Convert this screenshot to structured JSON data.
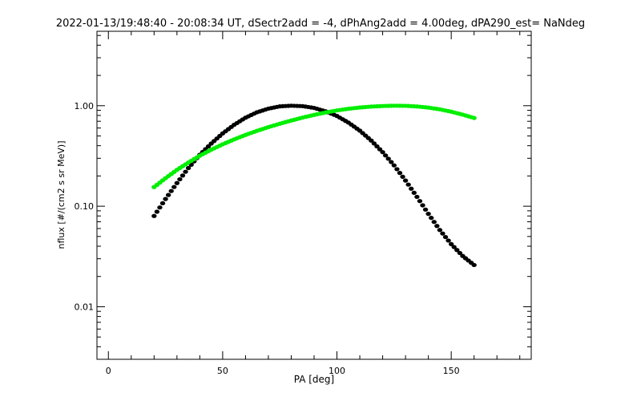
{
  "chart_data": {
    "type": "scatter",
    "title": "2022-01-13/19:48:40 - 20:08:34 UT, dSectr2add = -4, dPhAng2add = 4.00deg, dPA290_est=   NaNdeg",
    "xlabel": "PA [deg]",
    "ylabel": "nflux [#/(cm2 s sr MeV)]",
    "xlim": [
      -5,
      185
    ],
    "ylim": [
      0.003,
      5.5
    ],
    "yscale": "log",
    "x_ticks": [
      0,
      50,
      100,
      150
    ],
    "x_tick_labels": [
      "0",
      "50",
      "100",
      "150"
    ],
    "y_ticks": [
      0.01,
      0.1,
      1.0
    ],
    "y_tick_labels": [
      "0.01",
      "0.10",
      "1.00"
    ],
    "grid": false,
    "series": [
      {
        "color": "#000000",
        "x": [
          20,
          25,
          30,
          35,
          40,
          45,
          50,
          55,
          60,
          65,
          70,
          75,
          80,
          85,
          90,
          95,
          100,
          105,
          110,
          115,
          120,
          125,
          130,
          135,
          140,
          145,
          150,
          155,
          160
        ],
        "y": [
          0.08,
          0.118,
          0.17,
          0.24,
          0.325,
          0.42,
          0.53,
          0.645,
          0.76,
          0.86,
          0.935,
          0.985,
          1.0,
          0.99,
          0.95,
          0.88,
          0.79,
          0.68,
          0.565,
          0.45,
          0.345,
          0.255,
          0.18,
          0.124,
          0.084,
          0.058,
          0.042,
          0.032,
          0.026
        ]
      },
      {
        "color": "#00ee00",
        "x": [
          20,
          25,
          30,
          35,
          40,
          45,
          50,
          55,
          60,
          65,
          70,
          75,
          80,
          85,
          90,
          95,
          100,
          105,
          110,
          115,
          120,
          125,
          130,
          135,
          140,
          145,
          150,
          155,
          160
        ],
        "y": [
          0.155,
          0.19,
          0.23,
          0.272,
          0.318,
          0.365,
          0.413,
          0.462,
          0.512,
          0.562,
          0.612,
          0.662,
          0.712,
          0.762,
          0.81,
          0.856,
          0.897,
          0.932,
          0.96,
          0.98,
          0.993,
          1.0,
          0.997,
          0.983,
          0.958,
          0.92,
          0.872,
          0.815,
          0.755
        ]
      }
    ]
  }
}
